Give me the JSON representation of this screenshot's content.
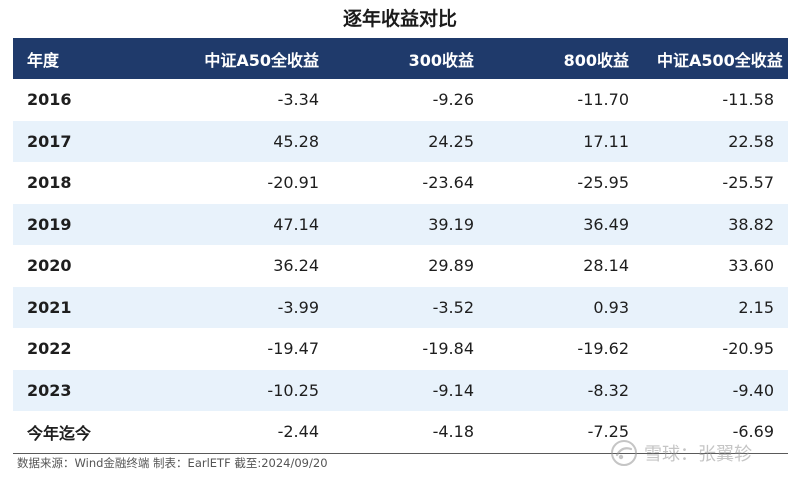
{
  "chart_data": {
    "type": "table",
    "title": "逐年收益对比",
    "columns": [
      "年度",
      "中证A50全收益",
      "300收益",
      "800收益",
      "中证A500全收益"
    ],
    "rows": [
      [
        "2016",
        "-3.34",
        "-9.26",
        "-11.70",
        "-11.58"
      ],
      [
        "2017",
        "45.28",
        "24.25",
        "17.11",
        "22.58"
      ],
      [
        "2018",
        "-20.91",
        "-23.64",
        "-25.95",
        "-25.57"
      ],
      [
        "2019",
        "47.14",
        "39.19",
        "36.49",
        "38.82"
      ],
      [
        "2020",
        "36.24",
        "29.89",
        "28.14",
        "33.60"
      ],
      [
        "2021",
        "-3.99",
        "-3.52",
        "0.93",
        "2.15"
      ],
      [
        "2022",
        "-19.47",
        "-19.84",
        "-19.62",
        "-20.95"
      ],
      [
        "2023",
        "-10.25",
        "-9.14",
        "-8.32",
        "-9.40"
      ],
      [
        "今年迄今",
        "-2.44",
        "-4.18",
        "-7.25",
        "-6.69"
      ]
    ],
    "source": "数据来源：Wind金融终端 制表：EarlETF 截至:2024/09/20"
  },
  "colors": {
    "header_bg": "#1f3a6b",
    "header_text": "#ffffff",
    "stripe": "#e8f2fb",
    "text": "#1e1e1e"
  },
  "watermark": {
    "icon": "snowball-logo-icon",
    "text": "雪球：张翼轸"
  }
}
